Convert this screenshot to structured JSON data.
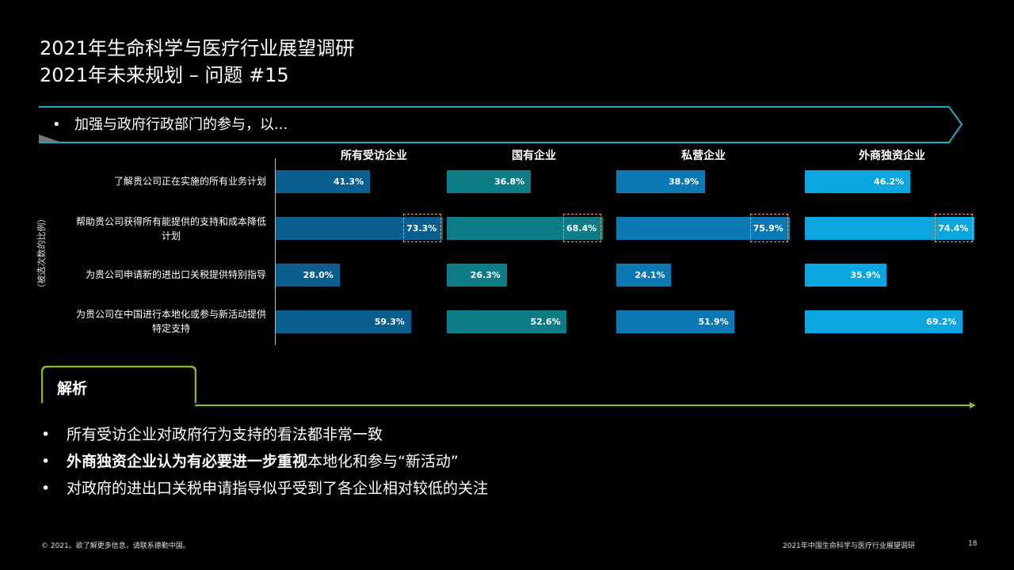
{
  "title": {
    "line1": "2021年生命科学与医疗行业展望调研",
    "line2": "2021年未来规划 – 问题 #15"
  },
  "banner": {
    "bullet": "•",
    "text": "加强与政府行政部门的参与，以..."
  },
  "chart_data": {
    "type": "bar",
    "orientation": "horizontal",
    "ylabel": "（被选次数的比例）",
    "categories": [
      "了解贵公司正在实施的所有业务计划",
      "帮助贵公司获得所有能提供的支持和成本降低计划",
      "为贵公司申请新的进出口关税提供特别指导",
      "为贵公司在中国进行本地化或参与新活动提供特定支持"
    ],
    "category_lines": [
      [
        "了解贵公司正在实施的所有业务计划"
      ],
      [
        "帮助贵公司获得所有能提供的支持和成本降低",
        "计划"
      ],
      [
        "为贵公司申请新的进出口关税提供特别指导"
      ],
      [
        "为贵公司在中国进行本地化或参与新活动提供",
        "特定支持"
      ]
    ],
    "series": [
      {
        "name": "所有受访企业",
        "values": [
          41.3,
          73.3,
          28.0,
          59.3
        ],
        "labels": [
          "41.3%",
          "73.3%",
          "28.0%",
          "59.3%"
        ],
        "color": "#0b5f8f"
      },
      {
        "name": "国有企业",
        "values": [
          36.8,
          68.4,
          26.3,
          52.6
        ],
        "labels": [
          "36.8%",
          "68.4%",
          "26.3%",
          "52.6%"
        ],
        "color": "#0e7c86"
      },
      {
        "name": "私营企业",
        "values": [
          38.9,
          75.9,
          24.1,
          51.9
        ],
        "labels": [
          "38.9%",
          "75.9%",
          "24.1%",
          "51.9%"
        ],
        "color": "#0d79b4"
      },
      {
        "name": "外商独资企业",
        "values": [
          46.2,
          74.4,
          35.9,
          69.2
        ],
        "labels": [
          "46.2%",
          "74.4%",
          "35.9%",
          "69.2%"
        ],
        "color": "#0ba5e0"
      }
    ],
    "highlighted_category": 1,
    "highlight_color": "#f0a030",
    "xlim": [
      0,
      80
    ]
  },
  "analysis": {
    "heading": "解析",
    "accent": "#86bc25",
    "bullet": "•",
    "points": [
      {
        "bold": "",
        "text": "所有受访企业对政府行为支持的看法都非常一致"
      },
      {
        "bold": "外商独资企业认为有必要进一步重视",
        "text": "本地化和参与“新活动”"
      },
      {
        "bold": "",
        "text": "对政府的进出口关税申请指导似乎受到了各企业相对较低的关注"
      }
    ]
  },
  "footer": {
    "copyright": "© 2021。欲了解更多信息，请联系德勤中国。",
    "report": "2021年中国生命科学与医疗行业展望调研",
    "page": "18"
  }
}
